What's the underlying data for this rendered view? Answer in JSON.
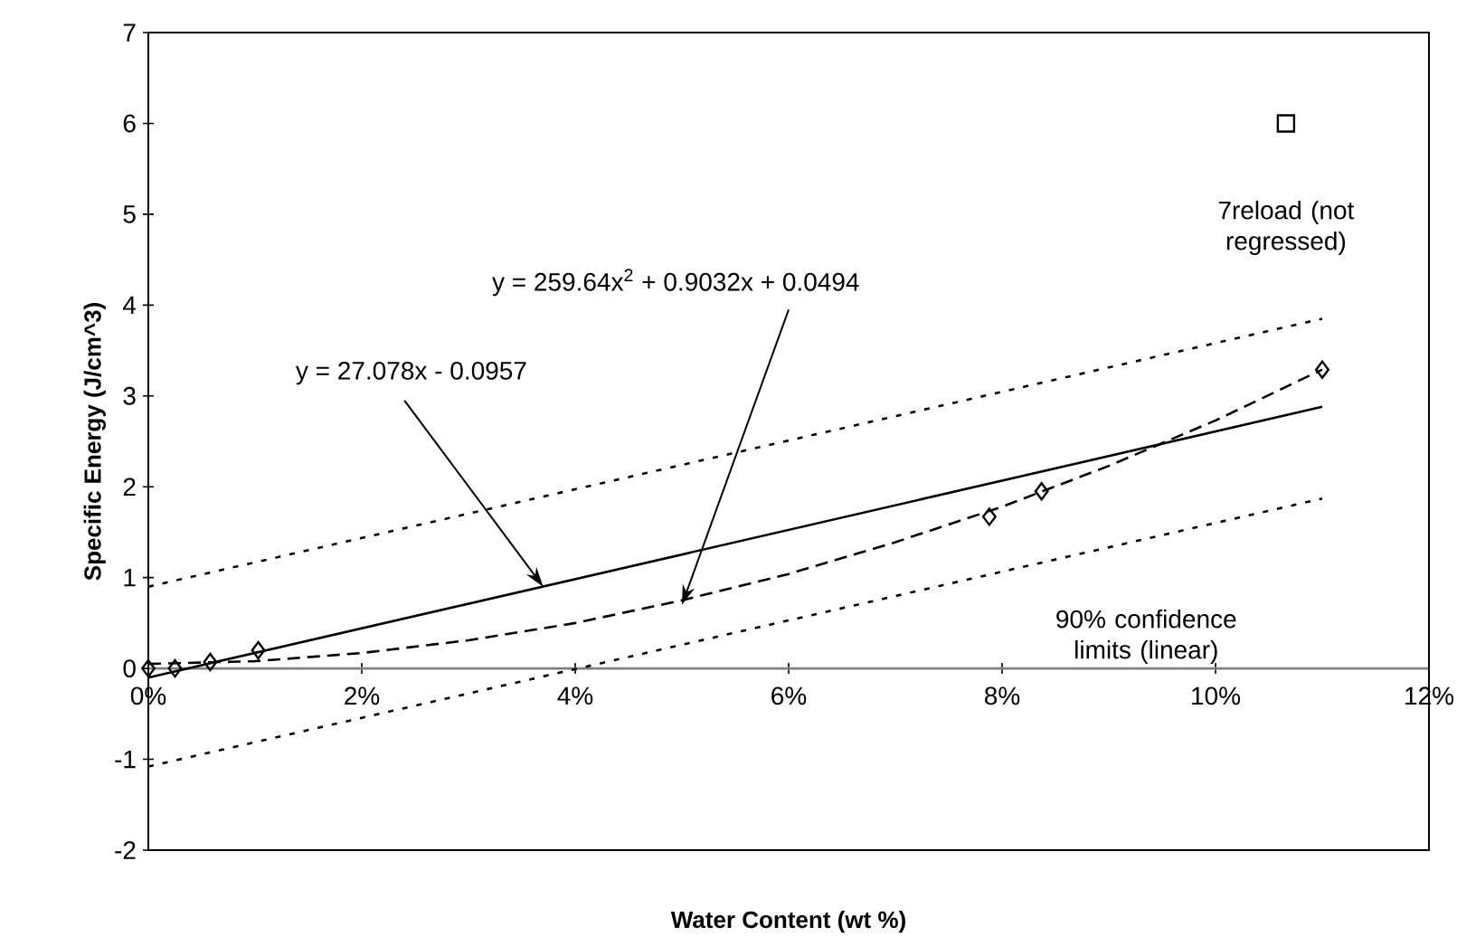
{
  "chart_data": {
    "type": "scatter",
    "xlabel": "Water Content (wt %)",
    "ylabel": "Specific Energy (J/cm^3)",
    "xlim": [
      0,
      0.12
    ],
    "ylim": [
      -2,
      7
    ],
    "xticks": [
      {
        "value": 0,
        "label": "0%"
      },
      {
        "value": 0.02,
        "label": "2%"
      },
      {
        "value": 0.04,
        "label": "4%"
      },
      {
        "value": 0.06,
        "label": "6%"
      },
      {
        "value": 0.08,
        "label": "8%"
      },
      {
        "value": 0.1,
        "label": "10%"
      },
      {
        "value": 0.12,
        "label": "12%"
      }
    ],
    "yticks": [
      -2,
      -1,
      0,
      1,
      2,
      3,
      4,
      5,
      6,
      7
    ],
    "series": [
      {
        "type": "line",
        "color": "#000000",
        "line_style": "dotted",
        "marker": "none",
        "x": [
          0,
          0.11
        ],
        "values": [
          0.9,
          3.85
        ]
      },
      {
        "type": "line",
        "color": "#000000",
        "line_style": "dotted",
        "marker": "none",
        "x": [
          0,
          0.11
        ],
        "values": [
          -1.08,
          1.87
        ]
      },
      {
        "type": "line",
        "color": "#000000",
        "line_style": "solid",
        "marker": "none",
        "x": [
          0,
          0.11
        ],
        "values": [
          -0.1,
          2.88
        ]
      },
      {
        "type": "line",
        "color": "#000000",
        "line_style": "dashed",
        "marker": "none",
        "x": [
          0,
          0.01,
          0.02,
          0.03,
          0.04,
          0.05,
          0.06,
          0.07,
          0.08,
          0.09,
          0.1,
          0.11
        ],
        "values": [
          0.05,
          0.08,
          0.17,
          0.31,
          0.5,
          0.75,
          1.04,
          1.39,
          1.78,
          2.23,
          2.73,
          3.29
        ]
      },
      {
        "color": "#000000",
        "marker": "diamond",
        "x": [
          0,
          0.0025,
          0.0058,
          0.0103,
          0.0788,
          0.0837,
          0.11
        ],
        "values": [
          0.0,
          0.0,
          0.07,
          0.2,
          1.67,
          1.95,
          3.29
        ]
      },
      {
        "color": "#000000",
        "marker": "square",
        "x": [
          0.1066
        ],
        "values": [
          6.0
        ]
      }
    ],
    "annotations": [
      {
        "text": "y = 27.078x - 0.0957",
        "x": 0.037,
        "y": 0.9
      },
      {
        "text": "y = 259.64x$^{2}$ + 0.9032x + 0.0494",
        "x": 0.05,
        "y": 0.7
      },
      "7reload (not regressed)",
      "90% confidence limits (linear)"
    ]
  }
}
